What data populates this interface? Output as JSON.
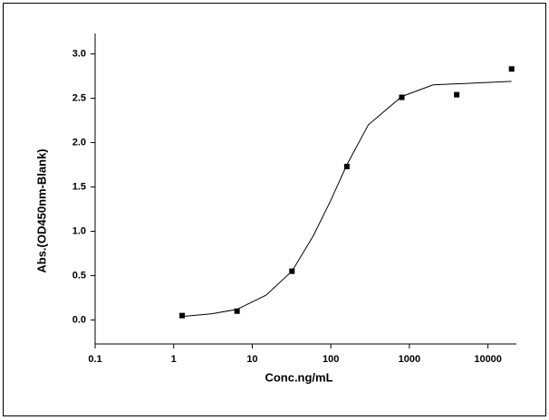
{
  "chart_data": {
    "type": "scatter",
    "x_label": "Conc.ng/mL",
    "y_label": "Abs.(OD450nm-Blank)",
    "x": [
      1.28,
      6.4,
      32,
      160,
      800,
      4000,
      20000
    ],
    "values": [
      0.05,
      0.1,
      0.55,
      1.73,
      2.51,
      2.54,
      2.83
    ],
    "color": "#000000",
    "fit": {
      "x": [
        1.28,
        3,
        6.4,
        15,
        32,
        60,
        100,
        160,
        300,
        800,
        2000,
        20000
      ],
      "values": [
        0.04,
        0.07,
        0.12,
        0.28,
        0.55,
        0.95,
        1.35,
        1.75,
        2.2,
        2.52,
        2.65,
        2.69
      ]
    },
    "xscale": "log",
    "xlim": [
      0.1,
      23000
    ],
    "ylim": [
      -0.27,
      3.23
    ],
    "xticks": [
      0.1,
      1,
      10,
      100,
      1000,
      10000
    ],
    "yticks": [
      {
        "value": 0,
        "label": "0.0"
      },
      {
        "value": 0.5,
        "label": "0.5"
      },
      {
        "value": 1,
        "label": "1.0"
      },
      {
        "value": 1.5,
        "label": "1.5"
      },
      {
        "value": 2,
        "label": "2.0"
      },
      {
        "value": 2.5,
        "label": "2.5"
      },
      {
        "value": 3,
        "label": "3.0"
      }
    ],
    "grid": false
  }
}
